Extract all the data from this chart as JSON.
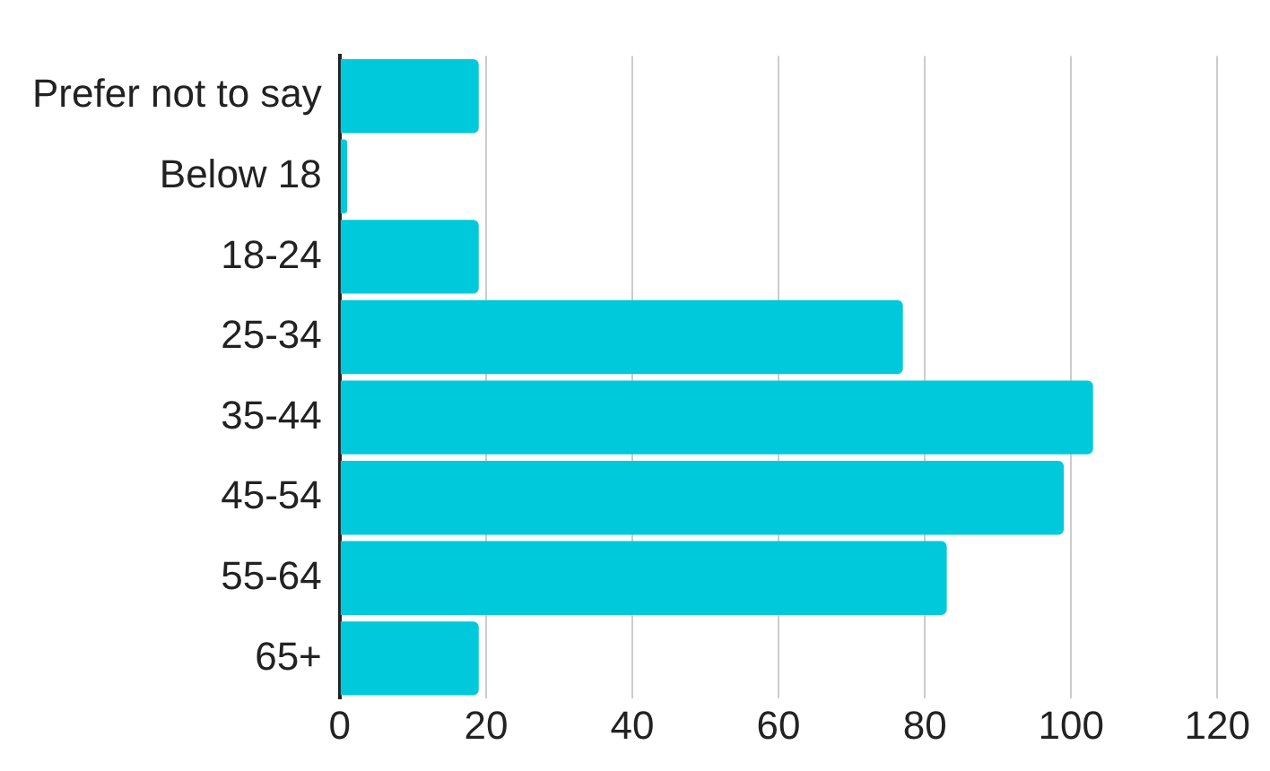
{
  "chart_data": {
    "type": "bar",
    "orientation": "horizontal",
    "categories": [
      "Prefer not to say",
      "Below 18",
      "18-24",
      "25-34",
      "35-44",
      "45-54",
      "55-64",
      "65+"
    ],
    "values": [
      19,
      1,
      19,
      77,
      103,
      99,
      83,
      19
    ],
    "color": "#00c9db",
    "xlim": [
      0,
      120
    ],
    "xticks": [
      0,
      20,
      40,
      60,
      80,
      100,
      120
    ],
    "grid": "x",
    "legend": false
  }
}
